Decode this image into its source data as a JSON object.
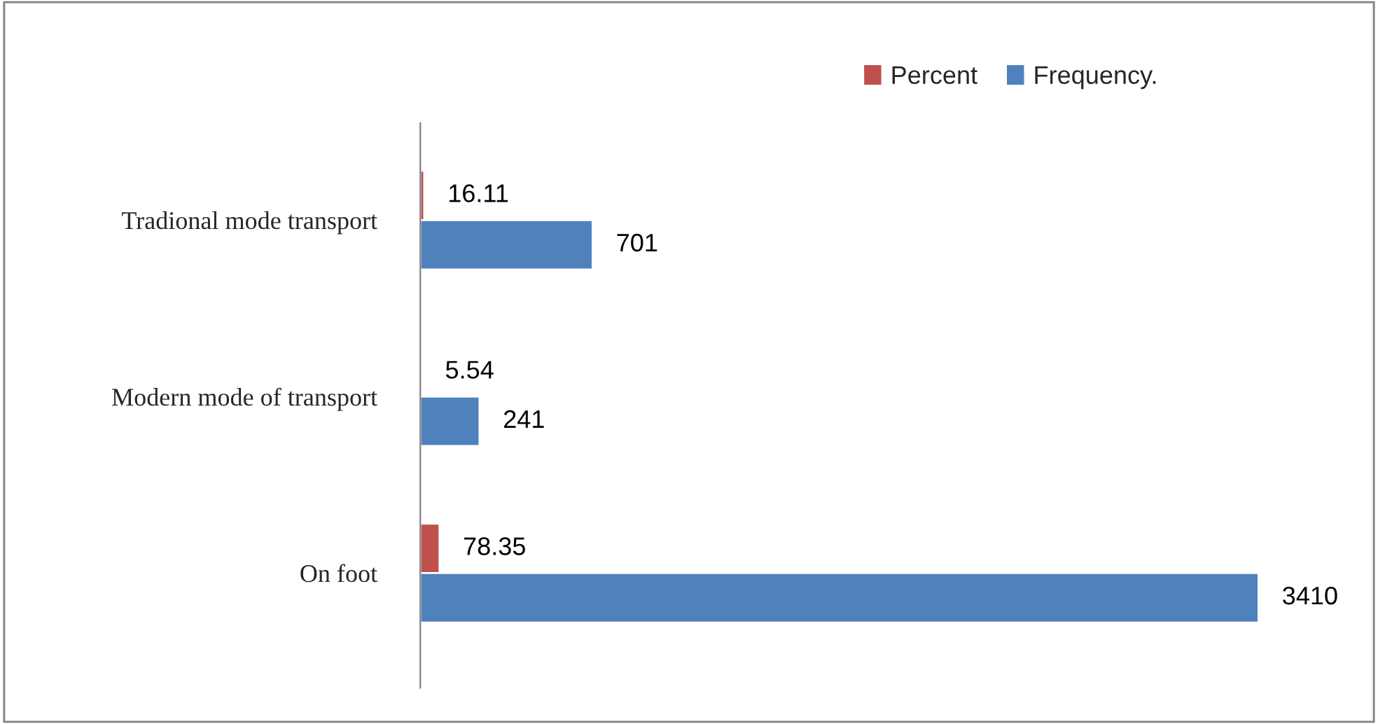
{
  "chart_data": {
    "type": "bar",
    "orientation": "horizontal",
    "categories": [
      "Tradional mode transport",
      "Modern mode of transport",
      "On foot"
    ],
    "series": [
      {
        "name": "Percent",
        "color": "#c0504d",
        "values": [
          16.11,
          5.54,
          78.35
        ]
      },
      {
        "name": "Frequency.",
        "color": "#4f81bd",
        "values": [
          701,
          241,
          3410
        ]
      }
    ],
    "data_labels": true,
    "legend": "top",
    "grid": false
  }
}
